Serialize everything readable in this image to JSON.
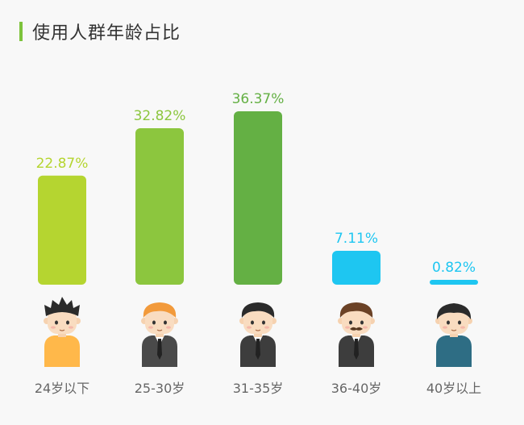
{
  "title": "使用人群年龄占比",
  "chart_data": {
    "type": "bar",
    "categories": [
      "24岁以下",
      "25-30岁",
      "31-35岁",
      "36-40岁",
      "40岁以上"
    ],
    "values": [
      22.87,
      32.82,
      36.37,
      7.11,
      0.82
    ],
    "value_labels": [
      "22.87%",
      "32.82%",
      "36.37%",
      "7.11%",
      "0.82%"
    ],
    "colors": [
      "#b5d530",
      "#8cc63e",
      "#64b044",
      "#1ec6f1",
      "#1ec6f1"
    ],
    "title": "使用人群年龄占比",
    "xlabel": "",
    "ylabel": "",
    "ylim": [
      0,
      36.37
    ],
    "grid": false,
    "legend": "none"
  },
  "avatars": [
    {
      "icon": "spiky-hair-boy-orange-shirt-icon",
      "hair": "#2b2b2b",
      "shirt": "#ffb84a",
      "tie": false,
      "mustache": false
    },
    {
      "icon": "orange-hair-man-suit-icon",
      "hair": "#f29a3b",
      "shirt": "#4a4a4a",
      "tie": true,
      "mustache": false
    },
    {
      "icon": "black-hair-man-suit-icon",
      "hair": "#2b2b2b",
      "shirt": "#3d3d3d",
      "tie": true,
      "mustache": false
    },
    {
      "icon": "mustache-man-suit-icon",
      "hair": "#6b4226",
      "shirt": "#3d3d3d",
      "tie": true,
      "mustache": true
    },
    {
      "icon": "older-man-blue-shirt-icon",
      "hair": "#2b2b2b",
      "shirt": "#2e6d84",
      "tie": false,
      "mustache": false
    }
  ]
}
